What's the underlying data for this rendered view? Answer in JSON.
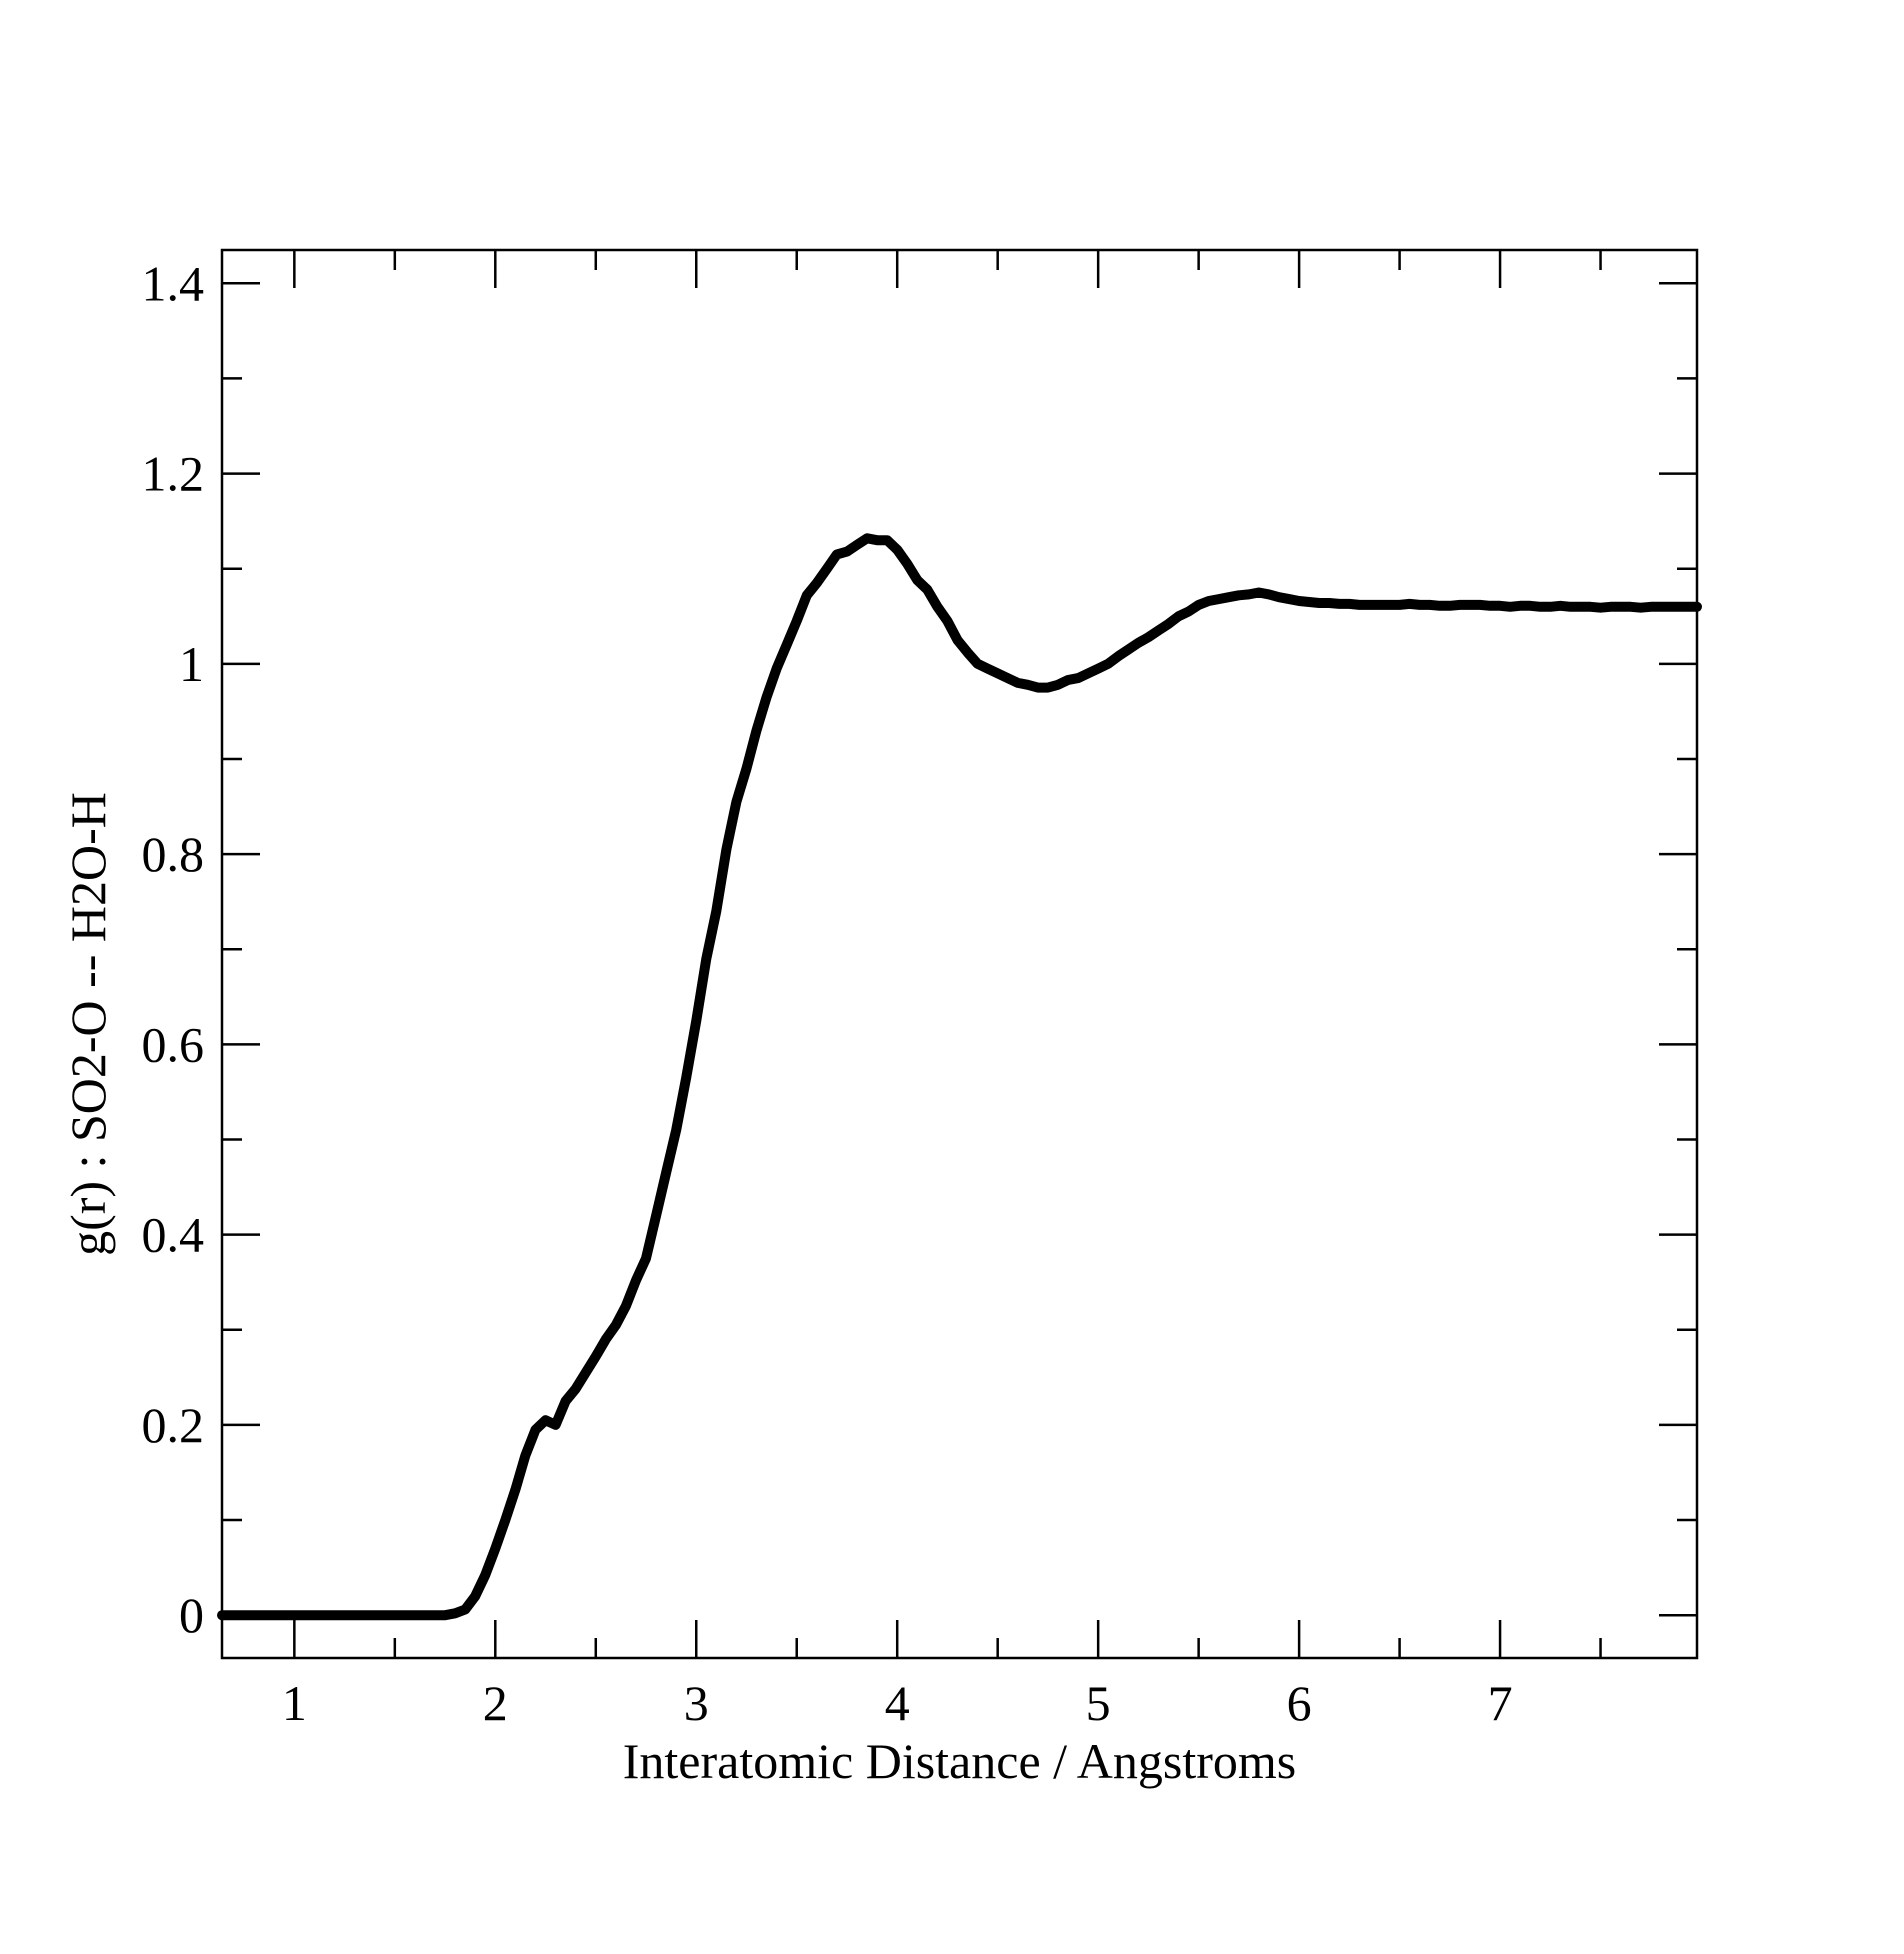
{
  "chart_data": {
    "type": "line",
    "title": "",
    "xlabel": "Interatomic Distance / Angstroms",
    "ylabel": "g(r) : SO2-O -- H2O-H",
    "xlim": [
      0.64,
      7.98
    ],
    "ylim": [
      -0.045,
      1.435
    ],
    "x_ticks": [
      1,
      2,
      3,
      4,
      5,
      6,
      7
    ],
    "x_tick_labels": [
      "1",
      "2",
      "3",
      "4",
      "5",
      "6",
      "7"
    ],
    "x_minor_step": 0.5,
    "y_ticks": [
      0,
      0.2,
      0.4,
      0.6,
      0.8,
      1.0,
      1.2,
      1.4
    ],
    "y_tick_labels": [
      "0",
      "0.2",
      "0.4",
      "0.6",
      "0.8",
      "1",
      "1.2",
      "1.4"
    ],
    "y_minor_step": 0.1,
    "grid": false,
    "legend": false,
    "line_color": "#000000",
    "series": [
      {
        "x": [
          0.64,
          1.0,
          1.5,
          1.75,
          1.8,
          1.85,
          1.9,
          1.95,
          2.0,
          2.05,
          2.1,
          2.15,
          2.2,
          2.25,
          2.3,
          2.35,
          2.4,
          2.45,
          2.5,
          2.55,
          2.6,
          2.65,
          2.7,
          2.75,
          2.8,
          2.85,
          2.9,
          2.95,
          3.0,
          3.05,
          3.1,
          3.15,
          3.2,
          3.25,
          3.3,
          3.35,
          3.4,
          3.45,
          3.5,
          3.55,
          3.6,
          3.65,
          3.7,
          3.75,
          3.8,
          3.85,
          3.9,
          3.95,
          4.0,
          4.05,
          4.1,
          4.15,
          4.2,
          4.25,
          4.3,
          4.35,
          4.4,
          4.45,
          4.5,
          4.55,
          4.6,
          4.65,
          4.7,
          4.75,
          4.8,
          4.85,
          4.9,
          4.95,
          5.0,
          5.05,
          5.1,
          5.15,
          5.2,
          5.25,
          5.3,
          5.35,
          5.4,
          5.45,
          5.5,
          5.55,
          5.6,
          5.65,
          5.7,
          5.75,
          5.8,
          5.85,
          5.9,
          5.95,
          6.0,
          6.05,
          6.1,
          6.15,
          6.2,
          6.25,
          6.3,
          6.35,
          6.4,
          6.45,
          6.5,
          6.55,
          6.6,
          6.65,
          6.7,
          6.75,
          6.8,
          6.85,
          6.9,
          6.95,
          7.0,
          7.05,
          7.1,
          7.15,
          7.2,
          7.25,
          7.3,
          7.35,
          7.4,
          7.45,
          7.5,
          7.55,
          7.6,
          7.65,
          7.7,
          7.75,
          7.8,
          7.85,
          7.9,
          7.95,
          7.98
        ],
        "y": [
          0,
          0,
          0,
          0,
          0.002,
          0.006,
          0.02,
          0.042,
          0.07,
          0.1,
          0.132,
          0.168,
          0.195,
          0.205,
          0.2,
          0.225,
          0.238,
          0.255,
          0.272,
          0.29,
          0.305,
          0.325,
          0.352,
          0.375,
          0.42,
          0.465,
          0.51,
          0.565,
          0.625,
          0.69,
          0.74,
          0.805,
          0.855,
          0.89,
          0.93,
          0.965,
          0.995,
          1.02,
          1.045,
          1.072,
          1.085,
          1.1,
          1.115,
          1.118,
          1.125,
          1.132,
          1.13,
          1.13,
          1.12,
          1.105,
          1.088,
          1.078,
          1.06,
          1.045,
          1.025,
          1.012,
          1.0,
          0.995,
          0.99,
          0.985,
          0.98,
          0.978,
          0.975,
          0.975,
          0.978,
          0.983,
          0.985,
          0.99,
          0.995,
          1.0,
          1.008,
          1.015,
          1.022,
          1.028,
          1.035,
          1.042,
          1.05,
          1.055,
          1.062,
          1.066,
          1.068,
          1.07,
          1.072,
          1.073,
          1.075,
          1.073,
          1.07,
          1.068,
          1.066,
          1.065,
          1.064,
          1.064,
          1.063,
          1.063,
          1.062,
          1.062,
          1.062,
          1.062,
          1.062,
          1.063,
          1.062,
          1.062,
          1.061,
          1.061,
          1.062,
          1.062,
          1.062,
          1.061,
          1.061,
          1.06,
          1.061,
          1.061,
          1.06,
          1.06,
          1.061,
          1.06,
          1.06,
          1.06,
          1.059,
          1.06,
          1.06,
          1.06,
          1.059,
          1.06,
          1.06,
          1.06,
          1.06,
          1.06,
          1.06
        ]
      }
    ]
  }
}
